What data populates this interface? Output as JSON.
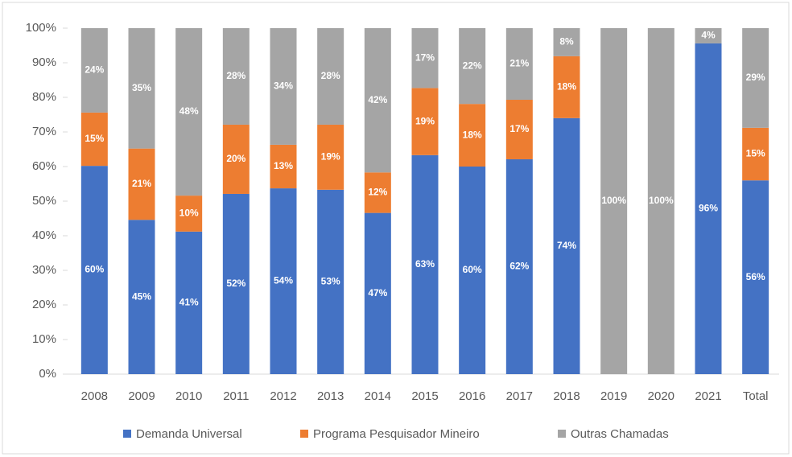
{
  "chart_data": {
    "type": "stacked_bar",
    "categories": [
      "2008",
      "2009",
      "2010",
      "2011",
      "2012",
      "2013",
      "2014",
      "2015",
      "2016",
      "2017",
      "2018",
      "2019",
      "2020",
      "2021",
      "Total"
    ],
    "series": [
      {
        "name": "Demanda Universal",
        "color": "#4472c4",
        "values": [
          60.2,
          44.6,
          41.2,
          52.1,
          53.7,
          53.3,
          46.6,
          63.3,
          60.0,
          62.1,
          74.0,
          0,
          0,
          95.6,
          56.0
        ],
        "value_labels": [
          "60%",
          "45%",
          "41%",
          "52%",
          "54%",
          "53%",
          "47%",
          "63%",
          "60%",
          "62%",
          "74%",
          null,
          null,
          "96%",
          "56%"
        ]
      },
      {
        "name": "Programa Pesquisador Mineiro",
        "color": "#ed7d31",
        "values": [
          15.4,
          20.6,
          10.4,
          20.0,
          12.6,
          18.8,
          11.7,
          19.4,
          18.1,
          17.2,
          17.9,
          0,
          0,
          0,
          15.2
        ],
        "value_labels": [
          "15%",
          "21%",
          "10%",
          "20%",
          "13%",
          "19%",
          "12%",
          "19%",
          "18%",
          "17%",
          "18%",
          null,
          null,
          null,
          "15%"
        ]
      },
      {
        "name": "Outras Chamadas",
        "color": "#a5a5a5",
        "values": [
          24.4,
          34.8,
          48.4,
          27.9,
          33.7,
          27.9,
          41.7,
          17.3,
          21.9,
          20.7,
          8.1,
          100,
          100,
          4.4,
          28.8
        ],
        "value_labels": [
          "24%",
          "35%",
          "48%",
          "28%",
          "34%",
          "28%",
          "42%",
          "17%",
          "22%",
          "21%",
          "8%",
          "100%",
          "100%",
          "4%",
          "29%"
        ]
      }
    ],
    "ylim": [
      0,
      100
    ],
    "yticks": [
      {
        "value": 0,
        "label": "0%"
      },
      {
        "value": 10,
        "label": "10%"
      },
      {
        "value": 20,
        "label": "20%"
      },
      {
        "value": 30,
        "label": "30%"
      },
      {
        "value": 40,
        "label": "40%"
      },
      {
        "value": 50,
        "label": "50%"
      },
      {
        "value": 60,
        "label": "60%"
      },
      {
        "value": 70,
        "label": "70%"
      },
      {
        "value": 80,
        "label": "80%"
      },
      {
        "value": 90,
        "label": "90%"
      },
      {
        "value": 100,
        "label": "100%"
      }
    ],
    "legend": "bottom"
  }
}
